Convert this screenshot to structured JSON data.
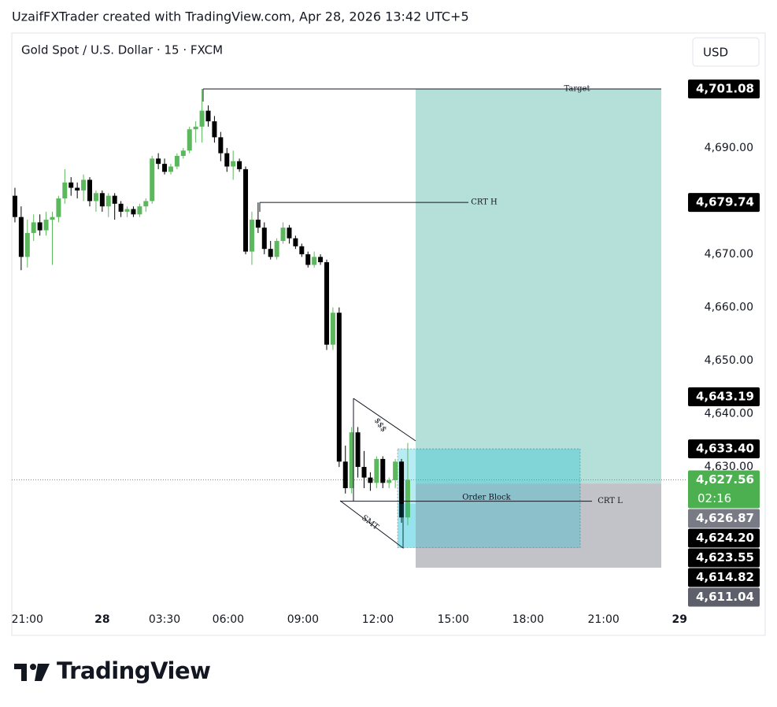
{
  "header": {
    "credit": "UzaifFXTrader created with TradingView.com, Apr 28, 2026 13:42 UTC+5",
    "logo": "TradingView"
  },
  "chart_data": {
    "type": "candlestick",
    "title": "Gold Spot / U.S. Dollar · 15 · FXCM",
    "currency": "USD",
    "up_color": "#5cb85c",
    "down_color": "#000000",
    "grid": false,
    "open": [
      4681,
      4677,
      4669.5,
      4674,
      4676,
      4674.5,
      4676.5,
      4677,
      4680.5,
      4683.5,
      4682.5,
      4682,
      4684,
      4680,
      4681.5,
      4679,
      4681,
      4679.5,
      4678,
      4678.5,
      4677.5,
      4679,
      4680,
      4688,
      4687,
      4685.5,
      4686.5,
      4688.5,
      4689.5,
      4693.5,
      4694,
      4697,
      4695,
      4692,
      4689,
      4686.5,
      4687.5,
      4686,
      4670.5,
      4676.5,
      4675,
      4671,
      4669.5,
      4672.5,
      4675,
      4673,
      4671.5,
      4670,
      4668,
      4669.5,
      4668.5,
      4653,
      4659,
      4631,
      4626,
      4636.5,
      4630,
      4628,
      4627,
      4631.5,
      4627,
      4627.5,
      4631,
      4620.5
    ],
    "high": [
      4682.5,
      4679,
      4676.5,
      4677.5,
      4677.5,
      4678,
      4678,
      4681,
      4686,
      4684.5,
      4683.5,
      4685,
      4684.5,
      4682,
      4682,
      4681.5,
      4681.5,
      4680,
      4679,
      4679,
      4679.5,
      4680.5,
      4688.5,
      4689,
      4688,
      4687,
      4689,
      4690,
      4694,
      4695,
      4701.08,
      4698,
      4696,
      4693,
      4690,
      4689.5,
      4688,
      4686.5,
      4678,
      4679.74,
      4676,
      4672.5,
      4673,
      4676,
      4675.5,
      4673.5,
      4672,
      4670.5,
      4670.5,
      4670,
      4669,
      4660,
      4660,
      4634,
      4637.5,
      4637.5,
      4633,
      4629,
      4632,
      4632,
      4628,
      4631.5,
      4631.5,
      4634.5
    ],
    "low": [
      4676,
      4667,
      4667.5,
      4672.5,
      4673.5,
      4673.5,
      4668,
      4676,
      4679.5,
      4681,
      4680.5,
      4680,
      4679,
      4678,
      4678,
      4677,
      4676.5,
      4677,
      4677,
      4677,
      4677,
      4678,
      4679.5,
      4686,
      4685,
      4685,
      4686,
      4688,
      4689,
      4691,
      4691,
      4694,
      4691,
      4687.5,
      4685.5,
      4684,
      4685.5,
      4670,
      4668,
      4674,
      4670,
      4669,
      4669,
      4672,
      4672,
      4671,
      4669.5,
      4667.5,
      4667.5,
      4668,
      4652,
      4652,
      4630,
      4625,
      4625,
      4628,
      4626,
      4625.5,
      4626,
      4626,
      4626,
      4626,
      4619.5,
      4619
    ],
    "close": [
      4677,
      4669.5,
      4674,
      4676,
      4674.5,
      4676.5,
      4677,
      4680.5,
      4683.5,
      4682.5,
      4682,
      4684,
      4680,
      4681.5,
      4679,
      4681,
      4679.5,
      4678,
      4678.5,
      4677.5,
      4679,
      4680,
      4688,
      4687,
      4685.5,
      4686.5,
      4688.5,
      4689.5,
      4693.5,
      4694,
      4697,
      4695,
      4692,
      4689,
      4686.5,
      4687.5,
      4686,
      4670.5,
      4676.5,
      4675,
      4671,
      4669.5,
      4672.5,
      4675,
      4673,
      4671.5,
      4670,
      4668,
      4669.5,
      4668.5,
      4653,
      4659,
      4631,
      4626,
      4636.5,
      4630,
      4628,
      4627,
      4631.5,
      4627,
      4627.5,
      4631,
      4620.5,
      4627.56
    ],
    "xlim": [
      -0.5,
      107.7
    ],
    "xticks": [
      {
        "value": 2,
        "label": "21:00"
      },
      {
        "value": 14,
        "label": "28"
      },
      {
        "value": 24,
        "label": "03:30"
      },
      {
        "value": 34.2,
        "label": "06:00"
      },
      {
        "value": 46.2,
        "label": "09:00"
      },
      {
        "value": 58.2,
        "label": "12:00"
      },
      {
        "value": 70.3,
        "label": "15:00"
      },
      {
        "value": 82.3,
        "label": "18:00"
      },
      {
        "value": 94.4,
        "label": "21:00"
      },
      {
        "value": 106.6,
        "label": "29"
      }
    ],
    "ylim": [
      4603.8,
      4711.6
    ],
    "yticks": [
      {
        "value": 4630,
        "label": "4,630.00"
      },
      {
        "value": 4640,
        "label": "4,640.00"
      },
      {
        "value": 4650,
        "label": "4,650.00"
      },
      {
        "value": 4660,
        "label": "4,660.00"
      },
      {
        "value": 4670,
        "label": "4,670.00"
      },
      {
        "value": 4690,
        "label": "4,690.00"
      }
    ],
    "price_labels": [
      {
        "value": 4701.08,
        "label": "4,701.08",
        "color": "#000000"
      },
      {
        "value": 4679.74,
        "label": "4,679.74",
        "color": "#000000"
      },
      {
        "value": 4643.19,
        "label": "4,643.19",
        "color": "#000000"
      },
      {
        "value": 4633.4,
        "label": "4,633.40",
        "color": "#000000"
      },
      {
        "value": 4627.56,
        "label": "4,627.56",
        "countdown": "02:16",
        "color": "#4caf50"
      },
      {
        "value": 4626.87,
        "label": "4,626.87",
        "color": "#787b86"
      },
      {
        "value": 4624.2,
        "label": "4,624.20",
        "color": "#000000"
      },
      {
        "value": 4623.55,
        "label": "4,623.55",
        "color": "#000000"
      },
      {
        "value": 4614.82,
        "label": "4,614.82",
        "color": "#000000"
      },
      {
        "value": 4611.04,
        "label": "4,611.04",
        "color": "#5d606b"
      }
    ],
    "annotations": {
      "target": {
        "text": "Target",
        "price": 4701.08
      },
      "crt_h": {
        "text": "CRT H",
        "price": 4679.74
      },
      "crt_l": {
        "text": "CRT L",
        "price": 4623.55
      },
      "order_block": {
        "text": "Order Block",
        "top": 4633.4,
        "bottom": 4614.82
      },
      "position": {
        "target": 4701.08,
        "entry": 4626.87,
        "stop": 4611.04
      },
      "smt": "SMT",
      "sss": "$$$"
    }
  }
}
